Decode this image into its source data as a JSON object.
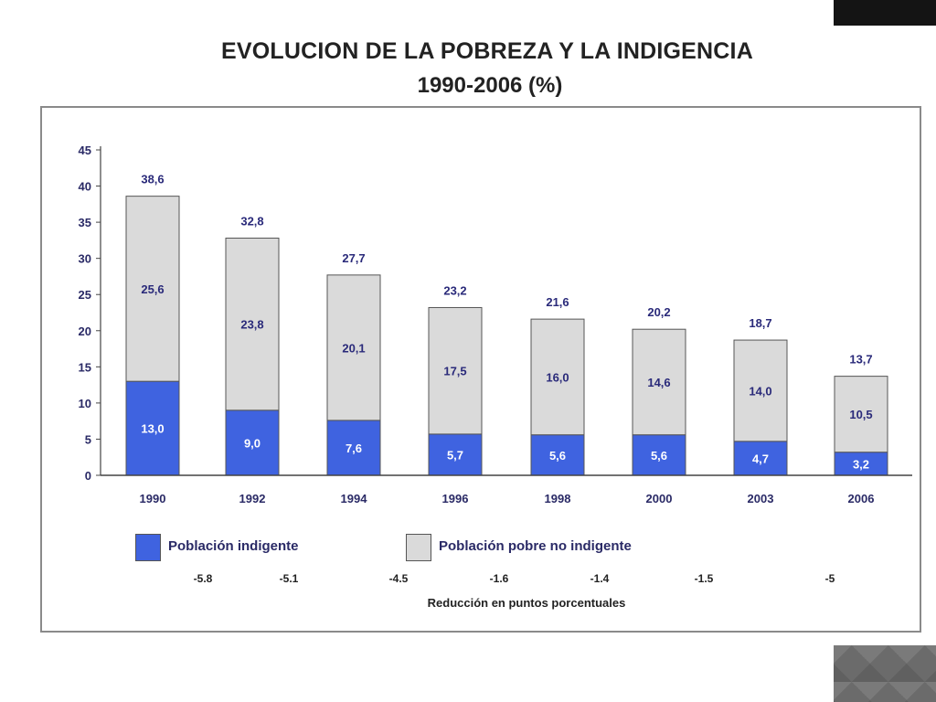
{
  "colors": {
    "indigent": "#3f63e0",
    "poor": "#dadada",
    "text": "#2a2a7a"
  },
  "chart_data": {
    "type": "bar",
    "stacked": true,
    "title": "EVOLUCION DE LA POBREZA Y LA INDIGENCIA",
    "subtitle": "1990-2006 (%)",
    "categories": [
      "1990",
      "1992",
      "1994",
      "1996",
      "1998",
      "2000",
      "2003",
      "2006"
    ],
    "series": [
      {
        "name": "Población indigente",
        "values": [
          13.0,
          9.0,
          7.6,
          5.7,
          5.6,
          5.6,
          4.7,
          3.2
        ],
        "labels": [
          "13,0",
          "9,0",
          "7,6",
          "5,7",
          "5,6",
          "5,6",
          "4,7",
          "3,2"
        ]
      },
      {
        "name": "Población pobre no indigente",
        "values": [
          25.6,
          23.8,
          20.1,
          17.5,
          16.0,
          14.6,
          14.0,
          10.5
        ],
        "labels": [
          "25,6",
          "23,8",
          "20,1",
          "17,5",
          "16,0",
          "14,6",
          "14,0",
          "10,5"
        ]
      }
    ],
    "totals": [
      38.6,
      32.8,
      27.7,
      23.2,
      21.6,
      20.2,
      18.7,
      13.7
    ],
    "total_labels": [
      "38,6",
      "32,8",
      "27,7",
      "23,2",
      "21,6",
      "20,2",
      "18,7",
      "13,7"
    ],
    "yticks": [
      0,
      5,
      10,
      15,
      20,
      25,
      30,
      35,
      40,
      45
    ],
    "ylim": [
      0,
      45
    ],
    "legend_position": "bottom",
    "reductions": [
      "-5.8",
      "-5.1",
      "-4.5",
      "-1.6",
      "-1.4",
      "-1.5",
      "-5"
    ],
    "reduction_label": "Reducción en puntos porcentuales"
  }
}
